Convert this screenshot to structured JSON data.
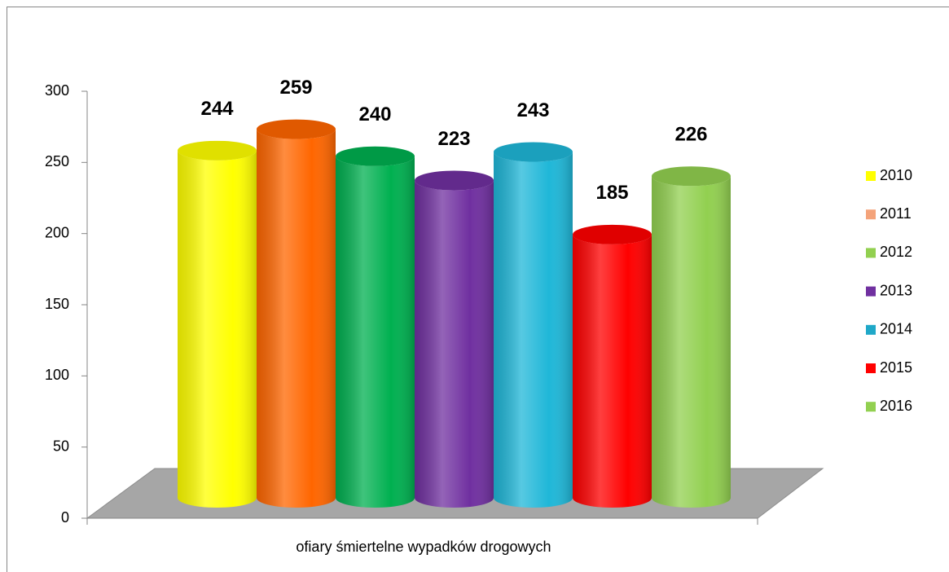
{
  "chart_data": {
    "type": "bar3d",
    "categories": [
      "ofiary śmiertelne wypadków drogowych"
    ],
    "series": [
      {
        "name": "2010",
        "color": "#ffff00",
        "legend_color": "#ffff00",
        "values": [
          244
        ]
      },
      {
        "name": "2011",
        "color": "#ff6600",
        "legend_color": "#f4a37a",
        "values": [
          259
        ]
      },
      {
        "name": "2012",
        "color": "#00b050",
        "legend_color": "#92d050",
        "values": [
          240
        ]
      },
      {
        "name": "2013",
        "color": "#7030a0",
        "legend_color": "#7030a0",
        "values": [
          223
        ]
      },
      {
        "name": "2014",
        "color": "#1fb7d8",
        "legend_color": "#1fa8c8",
        "values": [
          243
        ]
      },
      {
        "name": "2015",
        "color": "#ff0000",
        "legend_color": "#ff0000",
        "values": [
          185
        ]
      },
      {
        "name": "2016",
        "color": "#92d050",
        "legend_color": "#92d050",
        "values": [
          226
        ]
      }
    ],
    "ylim": [
      0,
      300
    ],
    "yticks": [
      0,
      50,
      100,
      150,
      200,
      250,
      300
    ],
    "legend": "right"
  }
}
